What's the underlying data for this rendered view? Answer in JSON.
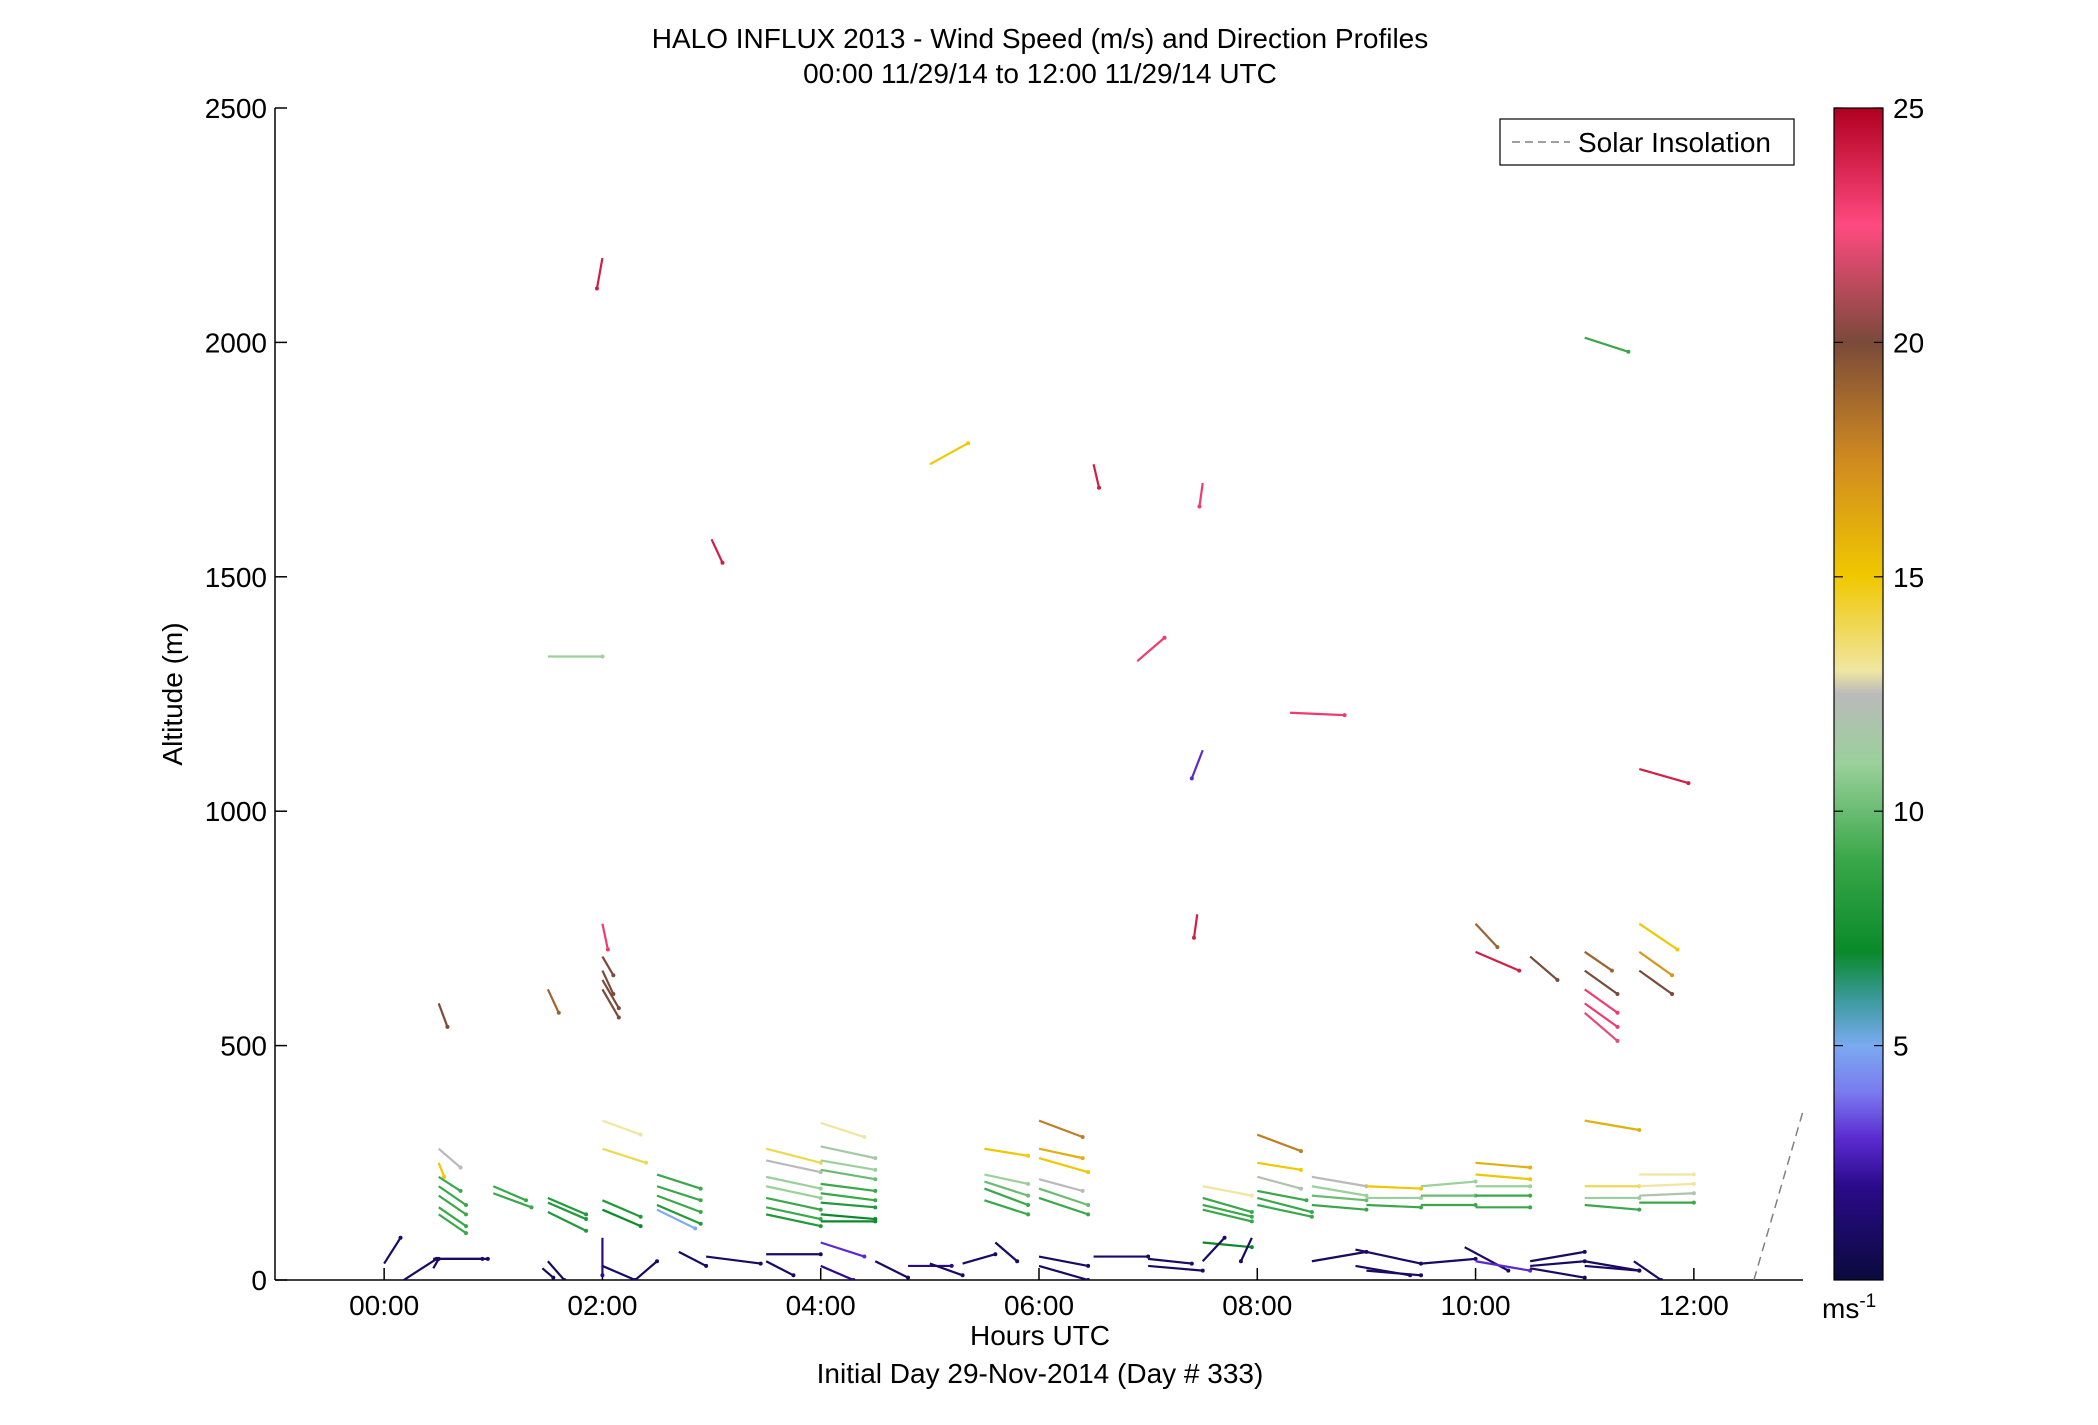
{
  "figure": {
    "title_line1": "HALO INFLUX 2013 - Wind Speed (m/s) and Direction Profiles",
    "title_line2": "00:00 11/29/14 to 12:00 11/29/14  UTC",
    "caption": "Initial Day 29-Nov-2014 (Day # 333)"
  },
  "chart_data": {
    "type": "wind barb profile (altitude vs time, colored by speed)",
    "title": "HALO INFLUX 2013 - Wind Speed (m/s) and Direction Profiles",
    "subtitle": "00:00 11/29/14 to 12:00 11/29/14  UTC",
    "xlabel": "Hours UTC",
    "ylabel": "Altitude (m)",
    "xlim_hours": [
      -1.0,
      13.0
    ],
    "ylim": [
      0,
      2500
    ],
    "xticks": [
      0,
      2,
      4,
      6,
      8,
      10,
      12
    ],
    "xtick_labels": [
      "00:00",
      "02:00",
      "04:00",
      "06:00",
      "08:00",
      "10:00",
      "12:00"
    ],
    "yticks": [
      0,
      500,
      1000,
      1500,
      2000,
      2500
    ],
    "ytick_labels": [
      "0",
      "500",
      "1000",
      "1500",
      "2000",
      "2500"
    ],
    "legend": {
      "entries": [
        "Solar Insolation"
      ],
      "location": "top-right",
      "style": "dashed gray"
    },
    "colorbar": {
      "unit": "ms-1",
      "unit_base": "ms",
      "unit_exp": "-1",
      "range": [
        0,
        25
      ],
      "ticks": [
        5,
        10,
        15,
        20,
        25
      ],
      "tick_labels": [
        "5",
        "10",
        "15",
        "20",
        "25"
      ],
      "colormap_stops": [
        [
          0,
          "#0a0a3c"
        ],
        [
          2,
          "#2a0a8a"
        ],
        [
          3,
          "#5a2ad0"
        ],
        [
          4,
          "#7a7af0"
        ],
        [
          5,
          "#7aaaf0"
        ],
        [
          6,
          "#3a9a9a"
        ],
        [
          7,
          "#0a8a2a"
        ],
        [
          9,
          "#3aa84a"
        ],
        [
          11,
          "#9ad09a"
        ],
        [
          12.5,
          "#bababa"
        ],
        [
          13,
          "#f0e6a0"
        ],
        [
          15,
          "#f0c800"
        ],
        [
          17.5,
          "#d08a20"
        ],
        [
          20,
          "#7a4a3a"
        ],
        [
          22.5,
          "#ff4a80"
        ],
        [
          25,
          "#b00020"
        ]
      ]
    },
    "solar_insolation": {
      "x": [
        12.55,
        13.0
      ],
      "y": [
        0,
        360
      ]
    },
    "wind_vectors_note": "each vector: start time (h), altitude (m), end offset in time (h) and altitude (m); color from speed (m/s)",
    "wind_vectors": [
      [
        0.0,
        35,
        0.15,
        55,
        1
      ],
      [
        0.18,
        0,
        0.3,
        45,
        1
      ],
      [
        0.45,
        45,
        0.5,
        0,
        1
      ],
      [
        0.45,
        25,
        0.05,
        20,
        1
      ],
      [
        0.45,
        45,
        0.45,
        0,
        1
      ],
      [
        0.5,
        280,
        0.2,
        -40,
        12.5
      ],
      [
        0.5,
        250,
        0.05,
        -30,
        15
      ],
      [
        0.5,
        220,
        0.2,
        -30,
        9
      ],
      [
        0.5,
        200,
        0.25,
        -40,
        9
      ],
      [
        0.5,
        180,
        0.25,
        -40,
        9
      ],
      [
        0.5,
        155,
        0.25,
        -40,
        9
      ],
      [
        0.5,
        140,
        0.25,
        -40,
        9
      ],
      [
        0.5,
        590,
        0.08,
        -50,
        20
      ],
      [
        1.0,
        200,
        0.3,
        -30,
        9
      ],
      [
        1.0,
        185,
        0.35,
        -30,
        9
      ],
      [
        1.5,
        620,
        0.1,
        -50,
        19
      ],
      [
        1.5,
        175,
        0.35,
        -35,
        8
      ],
      [
        1.5,
        165,
        0.35,
        -35,
        8
      ],
      [
        1.5,
        145,
        0.35,
        -40,
        8
      ],
      [
        1.5,
        40,
        0.15,
        -40,
        1
      ],
      [
        1.45,
        25,
        0.1,
        -20,
        1
      ],
      [
        1.5,
        1330,
        0.5,
        0,
        11
      ],
      [
        2.0,
        2180,
        -0.05,
        -65,
        24
      ],
      [
        2.0,
        760,
        0.05,
        -55,
        23
      ],
      [
        2.0,
        690,
        0.1,
        -40,
        20
      ],
      [
        2.0,
        660,
        0.1,
        -50,
        20
      ],
      [
        2.0,
        640,
        0.15,
        -60,
        20
      ],
      [
        2.0,
        620,
        0.15,
        -60,
        20
      ],
      [
        2.0,
        340,
        0.35,
        -30,
        13
      ],
      [
        2.0,
        280,
        0.4,
        -30,
        14
      ],
      [
        2.0,
        170,
        0.35,
        -35,
        8
      ],
      [
        2.0,
        150,
        0.35,
        -35,
        7
      ],
      [
        2.0,
        90,
        0,
        -80,
        2
      ],
      [
        2.0,
        30,
        0.3,
        -30,
        1
      ],
      [
        2.3,
        0,
        0.2,
        40,
        1
      ],
      [
        2.5,
        225,
        0.4,
        -30,
        9
      ],
      [
        2.5,
        200,
        0.4,
        -30,
        9
      ],
      [
        2.5,
        180,
        0.4,
        -35,
        9
      ],
      [
        2.5,
        160,
        0.4,
        -40,
        8
      ],
      [
        2.5,
        150,
        0.35,
        -40,
        5
      ],
      [
        2.7,
        60,
        0.25,
        -30,
        1
      ],
      [
        2.95,
        50,
        0.5,
        -15,
        1
      ],
      [
        3.5,
        55,
        0.5,
        0,
        1
      ],
      [
        3.5,
        40,
        0.25,
        -30,
        1
      ],
      [
        3.5,
        280,
        0.5,
        -30,
        14
      ],
      [
        3.5,
        255,
        0.5,
        -25,
        12.5
      ],
      [
        3.5,
        220,
        0.5,
        -25,
        11
      ],
      [
        3.5,
        200,
        0.5,
        -25,
        11
      ],
      [
        3.5,
        175,
        0.5,
        -25,
        9
      ],
      [
        3.5,
        155,
        0.5,
        -25,
        9
      ],
      [
        3.5,
        140,
        0.5,
        -25,
        8
      ],
      [
        4.0,
        335,
        0.4,
        -30,
        13
      ],
      [
        4.0,
        285,
        0.5,
        -25,
        11.5
      ],
      [
        4.0,
        255,
        0.5,
        -20,
        11
      ],
      [
        4.0,
        235,
        0.5,
        -20,
        10
      ],
      [
        4.0,
        205,
        0.5,
        -15,
        9
      ],
      [
        4.0,
        185,
        0.5,
        -15,
        9
      ],
      [
        4.0,
        165,
        0.5,
        -10,
        8
      ],
      [
        4.0,
        140,
        0.5,
        -10,
        7
      ],
      [
        4.0,
        125,
        0.5,
        0,
        7
      ],
      [
        4.0,
        80,
        0.4,
        -30,
        3
      ],
      [
        4.0,
        30,
        0.3,
        -30,
        2
      ],
      [
        4.5,
        40,
        0.3,
        -35,
        1
      ],
      [
        4.8,
        30,
        0.4,
        0,
        2
      ],
      [
        5.0,
        35,
        0.3,
        -25,
        1
      ],
      [
        5.3,
        35,
        0.3,
        20,
        1
      ],
      [
        3.0,
        1580,
        0.1,
        -50,
        24
      ],
      [
        5.0,
        1740,
        0.35,
        45,
        15
      ],
      [
        5.5,
        280,
        0.4,
        -15,
        15
      ],
      [
        5.5,
        225,
        0.4,
        -20,
        11
      ],
      [
        5.5,
        210,
        0.4,
        -30,
        10
      ],
      [
        5.5,
        195,
        0.4,
        -35,
        9
      ],
      [
        5.5,
        170,
        0.4,
        -30,
        9
      ],
      [
        5.6,
        80,
        0.2,
        -40,
        1
      ],
      [
        6.0,
        340,
        0.4,
        -35,
        18
      ],
      [
        6.0,
        280,
        0.4,
        -20,
        16
      ],
      [
        6.0,
        260,
        0.45,
        -30,
        15
      ],
      [
        6.0,
        215,
        0.4,
        -25,
        12.5
      ],
      [
        6.0,
        195,
        0.45,
        -35,
        10
      ],
      [
        6.0,
        175,
        0.45,
        -35,
        9
      ],
      [
        6.0,
        50,
        0.45,
        -20,
        1
      ],
      [
        6.0,
        30,
        0.45,
        -30,
        1
      ],
      [
        6.5,
        50,
        0.5,
        0,
        1
      ],
      [
        6.5,
        1740,
        0.05,
        -50,
        24
      ],
      [
        6.9,
        1320,
        0.25,
        50,
        23
      ],
      [
        7.0,
        45,
        0.4,
        -10,
        1
      ],
      [
        7.0,
        30,
        0.5,
        -10,
        1
      ],
      [
        7.5,
        80,
        0.45,
        -10,
        7
      ],
      [
        7.45,
        780,
        -0.03,
        -50,
        24
      ],
      [
        7.5,
        1130,
        -0.1,
        -60,
        3
      ],
      [
        7.5,
        1700,
        -0.03,
        -50,
        23
      ],
      [
        7.5,
        200,
        0.45,
        -20,
        13
      ],
      [
        7.5,
        175,
        0.45,
        -30,
        9
      ],
      [
        7.5,
        160,
        0.45,
        -25,
        9
      ],
      [
        7.5,
        150,
        0.45,
        -25,
        9
      ],
      [
        7.5,
        40,
        0.2,
        50,
        1
      ],
      [
        7.95,
        90,
        -0.1,
        -50,
        1
      ],
      [
        8.0,
        310,
        0.4,
        -35,
        18
      ],
      [
        8.0,
        250,
        0.4,
        -15,
        15
      ],
      [
        8.0,
        220,
        0.4,
        -25,
        12
      ],
      [
        8.0,
        190,
        0.45,
        -20,
        9
      ],
      [
        8.0,
        175,
        0.5,
        -30,
        9
      ],
      [
        8.0,
        160,
        0.5,
        -25,
        9
      ],
      [
        8.3,
        1210,
        0.5,
        -5,
        23
      ],
      [
        8.5,
        220,
        0.5,
        -20,
        12.5
      ],
      [
        8.5,
        200,
        0.5,
        -20,
        11
      ],
      [
        8.5,
        180,
        0.5,
        -10,
        10
      ],
      [
        8.5,
        160,
        0.5,
        -10,
        9
      ],
      [
        8.5,
        40,
        0.5,
        20,
        1
      ],
      [
        8.9,
        65,
        0.6,
        -30,
        1
      ],
      [
        8.9,
        30,
        0.5,
        -20,
        1
      ],
      [
        9.0,
        20,
        0.5,
        -10,
        1
      ],
      [
        9.0,
        200,
        0.5,
        -5,
        15
      ],
      [
        9.0,
        175,
        0.5,
        0,
        11
      ],
      [
        9.0,
        160,
        0.5,
        -5,
        9
      ],
      [
        9.5,
        200,
        0.5,
        10,
        11
      ],
      [
        9.5,
        180,
        0.5,
        0,
        10
      ],
      [
        9.5,
        160,
        0.5,
        0,
        9
      ],
      [
        9.5,
        35,
        0.5,
        10,
        1
      ],
      [
        10.0,
        250,
        0.5,
        -10,
        16
      ],
      [
        10.0,
        225,
        0.5,
        -10,
        15
      ],
      [
        10.0,
        200,
        0.5,
        0,
        11
      ],
      [
        10.0,
        180,
        0.5,
        0,
        9
      ],
      [
        10.0,
        155,
        0.5,
        0,
        9
      ],
      [
        9.9,
        70,
        0.4,
        -50,
        1
      ],
      [
        10.0,
        40,
        0.5,
        -20,
        3
      ],
      [
        10.0,
        760,
        0.2,
        -50,
        19
      ],
      [
        10.0,
        700,
        0.4,
        -40,
        24
      ],
      [
        10.5,
        690,
        0.25,
        -50,
        20
      ],
      [
        10.5,
        40,
        0.5,
        20,
        1
      ],
      [
        10.5,
        30,
        0.5,
        10,
        1
      ],
      [
        10.5,
        25,
        0.5,
        -20,
        1
      ],
      [
        11.0,
        700,
        0.25,
        -40,
        19
      ],
      [
        11.0,
        660,
        0.3,
        -50,
        20
      ],
      [
        11.0,
        620,
        0.3,
        -50,
        23
      ],
      [
        11.0,
        590,
        0.3,
        -50,
        23
      ],
      [
        11.0,
        570,
        0.3,
        -60,
        22
      ],
      [
        11.0,
        2010,
        0.4,
        -30,
        9
      ],
      [
        11.0,
        340,
        0.5,
        -20,
        16
      ],
      [
        11.0,
        200,
        0.5,
        0,
        14
      ],
      [
        11.0,
        175,
        0.5,
        0,
        11
      ],
      [
        11.0,
        160,
        0.5,
        -10,
        9
      ],
      [
        11.0,
        40,
        0.5,
        -20,
        1
      ],
      [
        11.0,
        30,
        0.5,
        -10,
        1
      ],
      [
        11.5,
        1090,
        0.45,
        -30,
        24
      ],
      [
        11.5,
        760,
        0.35,
        -55,
        15
      ],
      [
        11.5,
        700,
        0.3,
        -50,
        17
      ],
      [
        11.5,
        660,
        0.3,
        -50,
        20
      ],
      [
        11.5,
        225,
        0.5,
        0,
        13
      ],
      [
        11.5,
        200,
        0.5,
        5,
        13
      ],
      [
        11.5,
        180,
        0.5,
        5,
        12
      ],
      [
        11.5,
        165,
        0.5,
        0,
        9
      ],
      [
        11.45,
        40,
        0.25,
        -40,
        1
      ]
    ]
  }
}
